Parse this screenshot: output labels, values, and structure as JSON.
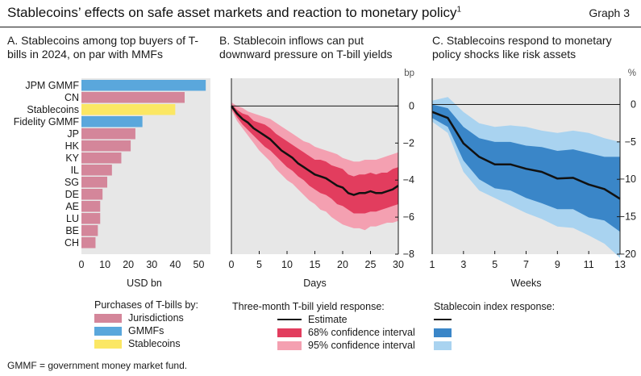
{
  "title": "Stablecoins’ effects on safe asset markets and reaction to monetary policy",
  "title_footnote_mark": "1",
  "graph_label": "Graph 3",
  "footnote": "GMMF = government money market fund.",
  "colors": {
    "jurisdiction": "#d4869a",
    "gmmf": "#5aa7dc",
    "stablecoin": "#fbe764",
    "panel_bg": "#e7e7e7",
    "b_ci68": "#e23d5e",
    "b_ci95": "#f4a0b1",
    "c_ci68": "#3a86c8",
    "c_ci95": "#a9d3f0",
    "line": "#111111"
  },
  "chart_data": [
    {
      "panel": "A",
      "type": "bar",
      "orientation": "horizontal",
      "title": "A. Stablecoins among top buyers of T-bills in 2024, on par with MMFs",
      "xlabel": "USD bn",
      "xlim": [
        0,
        55
      ],
      "xticks": [
        0,
        10,
        20,
        30,
        40,
        50
      ],
      "categories": [
        "JPM GMMF",
        "CN",
        "Stablecoins",
        "Fidelity GMMF",
        "JP",
        "HK",
        "KY",
        "IL",
        "SG",
        "DE",
        "AE",
        "LU",
        "BE",
        "CH"
      ],
      "values": [
        53,
        44,
        40,
        26,
        23,
        21,
        17,
        13,
        11,
        9,
        8,
        8,
        7,
        6
      ],
      "groups": [
        "gmmf",
        "jurisdiction",
        "stablecoin",
        "gmmf",
        "jurisdiction",
        "jurisdiction",
        "jurisdiction",
        "jurisdiction",
        "jurisdiction",
        "jurisdiction",
        "jurisdiction",
        "jurisdiction",
        "jurisdiction",
        "jurisdiction"
      ],
      "legend_title": "Purchases of T-bills by:",
      "legend": [
        {
          "key": "jurisdiction",
          "label": "Jurisdictions"
        },
        {
          "key": "gmmf",
          "label": "GMMFs"
        },
        {
          "key": "stablecoin",
          "label": "Stablecoins"
        }
      ]
    },
    {
      "panel": "B",
      "type": "line",
      "title": "B. Stablecoin inflows can put downward pressure on T-bill yields",
      "xlabel": "Days",
      "unit": "bp",
      "xlim": [
        0,
        30
      ],
      "ylim": [
        -8,
        1.5
      ],
      "xticks": [
        0,
        5,
        10,
        15,
        20,
        25,
        30
      ],
      "yticks": [
        0,
        -2,
        -4,
        -6,
        -8
      ],
      "x": [
        0,
        1,
        2,
        3,
        4,
        5,
        6,
        7,
        8,
        9,
        10,
        11,
        12,
        13,
        14,
        15,
        16,
        17,
        18,
        19,
        20,
        21,
        22,
        23,
        24,
        25,
        26,
        27,
        28,
        29,
        30
      ],
      "estimate": [
        0,
        -0.4,
        -0.7,
        -0.9,
        -1.2,
        -1.4,
        -1.6,
        -1.8,
        -2.1,
        -2.4,
        -2.6,
        -2.8,
        -3.1,
        -3.3,
        -3.5,
        -3.7,
        -3.8,
        -3.9,
        -4.1,
        -4.3,
        -4.4,
        -4.7,
        -4.8,
        -4.7,
        -4.7,
        -4.6,
        -4.7,
        -4.7,
        -4.6,
        -4.5,
        -4.3
      ],
      "ci68_lower": [
        -0.1,
        -0.6,
        -1.0,
        -1.3,
        -1.6,
        -1.9,
        -2.2,
        -2.4,
        -2.7,
        -3.0,
        -3.3,
        -3.5,
        -3.8,
        -4.0,
        -4.3,
        -4.5,
        -4.7,
        -4.8,
        -5.0,
        -5.3,
        -5.4,
        -5.6,
        -5.8,
        -5.8,
        -5.8,
        -5.7,
        -5.7,
        -5.6,
        -5.5,
        -5.4,
        -5.3
      ],
      "ci68_upper": [
        0.1,
        -0.2,
        -0.4,
        -0.5,
        -0.8,
        -0.9,
        -1.0,
        -1.2,
        -1.5,
        -1.7,
        -1.9,
        -2.1,
        -2.3,
        -2.5,
        -2.7,
        -2.9,
        -2.9,
        -3.0,
        -3.2,
        -3.3,
        -3.4,
        -3.7,
        -3.8,
        -3.7,
        -3.7,
        -3.6,
        -3.7,
        -3.6,
        -3.6,
        -3.4,
        -3.3
      ],
      "ci95_lower": [
        -0.2,
        -0.8,
        -1.2,
        -1.6,
        -2.0,
        -2.4,
        -2.7,
        -3.0,
        -3.4,
        -3.7,
        -4.0,
        -4.2,
        -4.5,
        -4.8,
        -5.1,
        -5.3,
        -5.6,
        -5.7,
        -6.0,
        -6.2,
        -6.4,
        -6.5,
        -6.6,
        -6.6,
        -6.7,
        -6.5,
        -6.5,
        -6.4,
        -6.3,
        -6.3,
        -6.2
      ],
      "ci95_upper": [
        0.2,
        0.0,
        -0.1,
        -0.3,
        -0.4,
        -0.5,
        -0.6,
        -0.7,
        -0.9,
        -1.1,
        -1.3,
        -1.5,
        -1.7,
        -1.9,
        -2.0,
        -2.2,
        -2.3,
        -2.4,
        -2.5,
        -2.6,
        -2.8,
        -2.9,
        -3.0,
        -3.0,
        -2.9,
        -2.9,
        -2.9,
        -2.8,
        -2.7,
        -2.6,
        -2.5
      ],
      "legend_title": "Three-month T-bill yield response:",
      "legend": [
        {
          "key": "line",
          "label": "Estimate"
        },
        {
          "key": "b_ci68",
          "label": "68% confidence interval"
        },
        {
          "key": "b_ci95",
          "label": "95% confidence interval"
        }
      ]
    },
    {
      "panel": "C",
      "type": "line",
      "title": "C. Stablecoins respond to monetary policy shocks like risk assets",
      "xlabel": "Weeks",
      "unit": "%",
      "xlim": [
        1,
        13
      ],
      "ylim": [
        -20,
        3.5
      ],
      "xticks": [
        1,
        3,
        5,
        7,
        9,
        11,
        13
      ],
      "yticks": [
        0,
        -5,
        -10,
        -15,
        -20
      ],
      "x": [
        1,
        2,
        3,
        4,
        5,
        6,
        7,
        8,
        9,
        10,
        11,
        12,
        13
      ],
      "estimate": [
        -1.0,
        -1.8,
        -5.2,
        -7.0,
        -8.0,
        -8.0,
        -8.6,
        -9.0,
        -9.9,
        -9.8,
        -10.7,
        -11.3,
        -12.6
      ],
      "ci68_lower": [
        -1.8,
        -3.0,
        -7.5,
        -10.0,
        -11.2,
        -11.5,
        -12.5,
        -13.2,
        -14.0,
        -14.0,
        -15.1,
        -15.5,
        -17.0
      ],
      "ci68_upper": [
        0.0,
        -0.5,
        -3.0,
        -4.5,
        -5.0,
        -5.0,
        -5.5,
        -5.7,
        -6.2,
        -6.0,
        -6.5,
        -7.0,
        -7.0
      ],
      "ci95_lower": [
        -2.3,
        -3.8,
        -9.0,
        -11.5,
        -12.5,
        -13.5,
        -14.5,
        -15.3,
        -16.3,
        -16.5,
        -17.5,
        -18.6,
        -20.5
      ],
      "ci95_upper": [
        0.5,
        1.0,
        -1.0,
        -2.5,
        -3.0,
        -2.8,
        -3.0,
        -3.5,
        -3.8,
        -3.5,
        -3.8,
        -4.5,
        -5.0
      ],
      "legend_title": "Stablecoin index response:",
      "legend": [
        {
          "key": "line",
          "label": ""
        },
        {
          "key": "c_ci68",
          "label": ""
        },
        {
          "key": "c_ci95",
          "label": ""
        }
      ]
    }
  ]
}
